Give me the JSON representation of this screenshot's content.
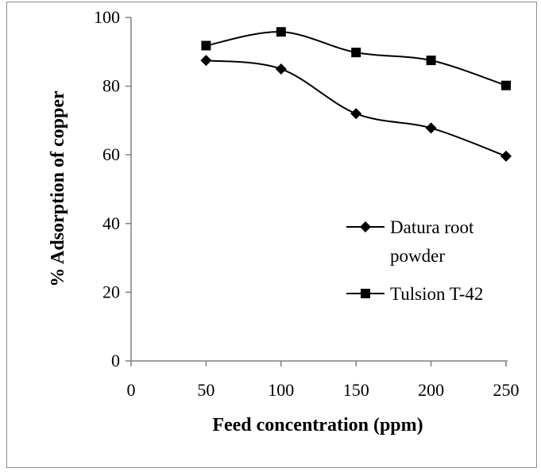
{
  "chart_data": {
    "type": "line",
    "title": "",
    "xlabel": "Feed concentration (ppm)",
    "ylabel": "% Adsorption of copper",
    "xlim": [
      0,
      250
    ],
    "ylim": [
      0,
      100
    ],
    "xticks": [
      0,
      50,
      100,
      150,
      200,
      250
    ],
    "yticks": [
      0,
      20,
      40,
      60,
      80,
      100
    ],
    "grid": false,
    "smooth": true,
    "legend_position": "right",
    "series": [
      {
        "name": "Datura root powder",
        "legend_lines": [
          "Datura root",
          "powder"
        ],
        "marker": "diamond",
        "color": "#000000",
        "x": [
          50,
          100,
          150,
          200,
          250
        ],
        "y": [
          87.5,
          85,
          72,
          67.8,
          59.6
        ]
      },
      {
        "name": "Tulsion T-42",
        "legend_lines": [
          "Tulsion T-42"
        ],
        "marker": "square",
        "color": "#000000",
        "x": [
          50,
          100,
          150,
          200,
          250
        ],
        "y": [
          91.8,
          95.8,
          89.8,
          87.5,
          80.2
        ]
      }
    ]
  }
}
